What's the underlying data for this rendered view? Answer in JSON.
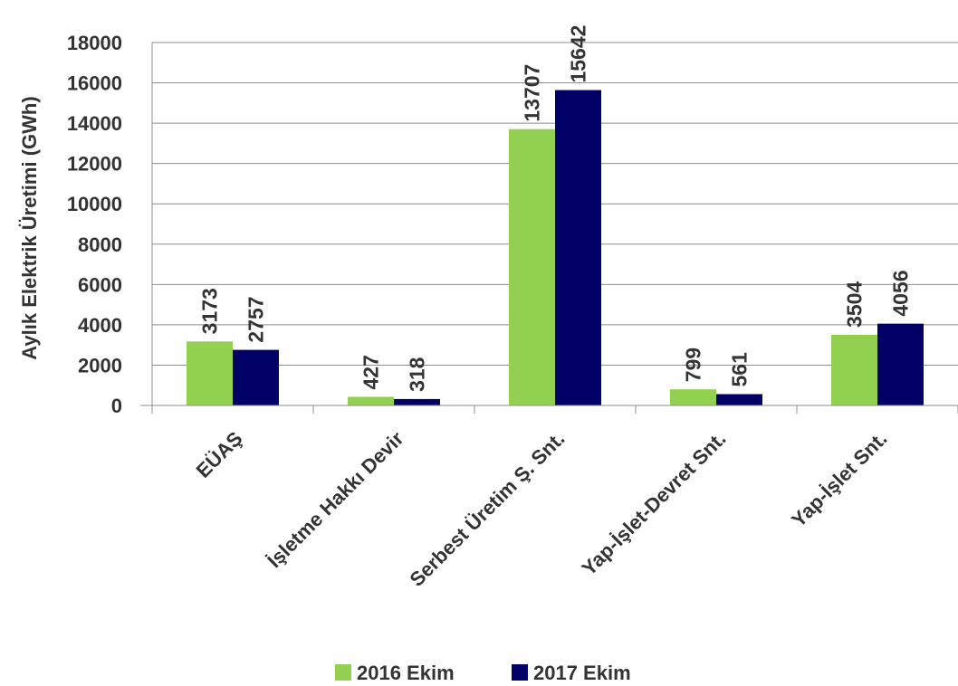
{
  "chart_data": {
    "type": "bar",
    "ylabel": "Aylık Elektrik Üretimi (GWh)",
    "ylim": [
      0,
      18000
    ],
    "yticks": [
      0,
      2000,
      4000,
      6000,
      8000,
      10000,
      12000,
      14000,
      16000,
      18000
    ],
    "categories": [
      "EÜAŞ",
      "İşletme Hakkı Devir",
      "Serbest Üretim Ş. Snt.",
      "Yap-İşlet-Devret Snt.",
      "Yap-İşlet Snt."
    ],
    "series": [
      {
        "name": "2016 Ekim",
        "color": "#92D050",
        "values": [
          3173,
          427,
          13707,
          799,
          3504
        ]
      },
      {
        "name": "2017 Ekim",
        "color": "#000066",
        "values": [
          2757,
          318,
          15642,
          561,
          4056
        ]
      }
    ],
    "grid": true,
    "legend_position": "bottom"
  }
}
